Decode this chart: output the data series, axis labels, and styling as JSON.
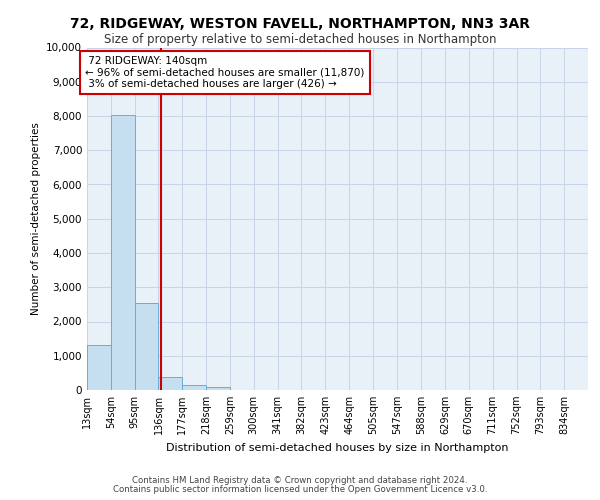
{
  "title": "72, RIDGEWAY, WESTON FAVELL, NORTHAMPTON, NN3 3AR",
  "subtitle": "Size of property relative to semi-detached houses in Northampton",
  "xlabel": "Distribution of semi-detached houses by size in Northampton",
  "ylabel": "Number of semi-detached properties",
  "footer1": "Contains HM Land Registry data © Crown copyright and database right 2024.",
  "footer2": "Contains public sector information licensed under the Open Government Licence v3.0.",
  "bins": [
    13,
    54,
    95,
    136,
    177,
    218,
    259,
    300,
    341,
    382,
    423,
    464,
    505,
    547,
    588,
    629,
    670,
    711,
    752,
    793,
    834
  ],
  "counts": [
    1320,
    8020,
    2530,
    390,
    140,
    80,
    0,
    0,
    0,
    0,
    0,
    0,
    0,
    0,
    0,
    0,
    0,
    0,
    0,
    0
  ],
  "property_size": 140,
  "property_name": "72 RIDGEWAY: 140sqm",
  "pct_smaller": 96,
  "n_smaller": 11870,
  "pct_larger": 3,
  "n_larger": 426,
  "bar_color": "#c5dff0",
  "bar_edge_color": "#6aadd5",
  "vline_color": "#cc0000",
  "grid_color": "#c8d4e8",
  "background_color": "#e8f0f8",
  "ylim": [
    0,
    10000
  ],
  "yticks": [
    0,
    1000,
    2000,
    3000,
    4000,
    5000,
    6000,
    7000,
    8000,
    9000,
    10000
  ]
}
